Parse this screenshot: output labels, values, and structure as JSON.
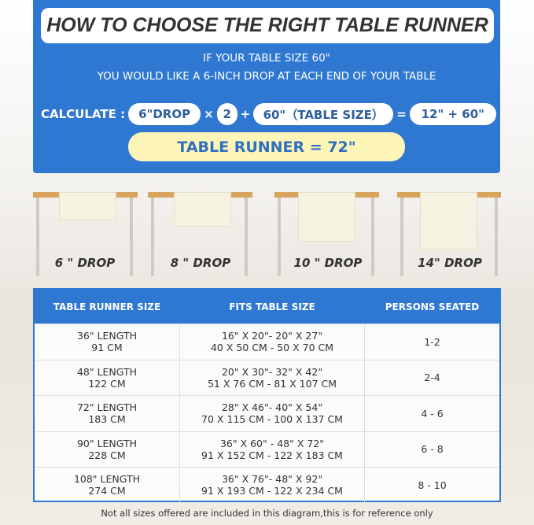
{
  "title": "HOW TO CHOOSE THE RIGHT TABLE RUNNER",
  "intro": [
    "IF YOUR TABLE SIZE 60\"",
    "YOU WOULD LIKE A 6-INCH DROP AT EACH END OF YOUR TABLE"
  ],
  "calc": {
    "label": "CALCULATE :",
    "drop": "6\"DROP",
    "times": "×",
    "multiplier": "2",
    "plus": "+",
    "table": "60\"（TABLE SIZE）",
    "equals": "=",
    "sum": "12\" + 60\"",
    "result": "TABLE RUNNER = 72\""
  },
  "drops": [
    "6 \" DROP",
    "8 \" DROP",
    "10 \" DROP",
    "14\" DROP"
  ],
  "table": {
    "headers": [
      "TABLE RUNNER SIZE",
      "FITS TABLE SIZE",
      "PERSONS SEATED"
    ],
    "rows": [
      {
        "size": [
          "36\" LENGTH",
          "91 CM"
        ],
        "fits": [
          "16\" X 20\"- 20\" X 27\"",
          "40 X 50 CM - 50 X 70 CM"
        ],
        "persons": "1-2"
      },
      {
        "size": [
          "48\" LENGTH",
          "122 CM"
        ],
        "fits": [
          "20\" X 30\"- 32\" X 42\"",
          "51 X 76 CM - 81 X 107 CM"
        ],
        "persons": "2-4"
      },
      {
        "size": [
          "72\" LENGTH",
          "183 CM"
        ],
        "fits": [
          "28\" X 46\"- 40\" X 54\"",
          "70 X 115 CM - 100 X 137 CM"
        ],
        "persons": "4 - 6"
      },
      {
        "size": [
          "90\" LENGTH",
          "228 CM"
        ],
        "fits": [
          "36\" X 60\" - 48\" X 72\"",
          "91 X 152 CM - 122 X 183 CM"
        ],
        "persons": "6 - 8"
      },
      {
        "size": [
          "108\" LENGTH",
          "274 CM"
        ],
        "fits": [
          "36\" X 76\"- 48\" X 92\"",
          "91 X 193 CM - 122 X 234 CM"
        ],
        "persons": "8 - 10"
      }
    ]
  },
  "note": "Not all sizes offered are included in this diagram,this is for reference only",
  "colors": {
    "blue": "#2f78d2",
    "yellow": "#fdf5b8",
    "wood": "#d9a45e"
  }
}
